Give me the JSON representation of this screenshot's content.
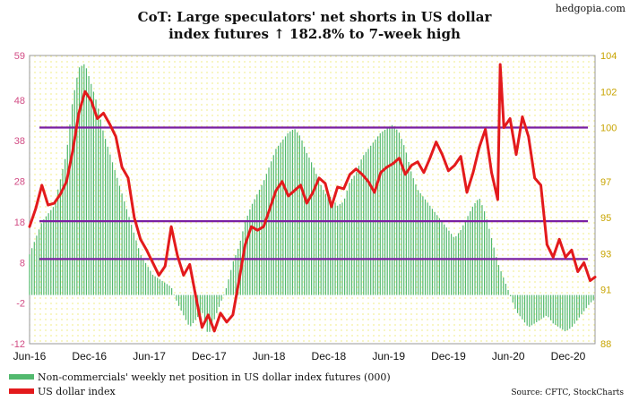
{
  "chart_data": {
    "type": "bar+line",
    "title_line1": "CoT: Large speculators' net shorts in US dollar",
    "title_line2": "index futures ↑ 182.8% to 7-week high",
    "watermark": "hedgopia.com",
    "source": "Source: CFTC, StockCharts",
    "x_tick_labels": [
      "Jun-16",
      "Dec-16",
      "Jun-17",
      "Dec-17",
      "Jun-18",
      "Dec-18",
      "Jun-19",
      "Dec-19",
      "Jun-20",
      "Dec-20"
    ],
    "x_range": [
      2016.4,
      2020.99
    ],
    "y_left": {
      "ticks": [
        59,
        48,
        38,
        28,
        18,
        8,
        -2,
        -12
      ],
      "range": [
        -12,
        59
      ],
      "color": "#d24b84"
    },
    "y_right": {
      "ticks": [
        104,
        102,
        100,
        97,
        95,
        93,
        91,
        88
      ],
      "range": [
        88,
        104
      ],
      "color": "#c8a400"
    },
    "reference_lines_usd": [
      100,
      94.8,
      92.7
    ],
    "colors": {
      "bars": "#52b96e",
      "line": "#e31a1c",
      "ref_lines": "#7a1fa2",
      "background_dots": "#f3ef9a"
    },
    "legend": [
      {
        "label": "Non-commercials' weekly net position in US dollar index futures (000)",
        "color": "#52b96e"
      },
      {
        "label": "US dollar index",
        "color": "#e31a1c"
      }
    ],
    "net_position_series": {
      "name": "Non-commercials' weekly net position in US dollar index futures (000)",
      "x": [
        2016.4,
        2016.5,
        2016.6,
        2016.7,
        2016.75,
        2016.8,
        2016.85,
        2016.9,
        2016.95,
        2017.0,
        2017.1,
        2017.2,
        2017.3,
        2017.4,
        2017.45,
        2017.5,
        2017.55,
        2017.6,
        2017.65,
        2017.7,
        2017.75,
        2017.8,
        2017.85,
        2017.9,
        2017.95,
        2018.0,
        2018.05,
        2018.1,
        2018.15,
        2018.2,
        2018.25,
        2018.3,
        2018.35,
        2018.4,
        2018.45,
        2018.5,
        2018.55,
        2018.6,
        2018.65,
        2018.7,
        2018.75,
        2018.8,
        2018.85,
        2018.9,
        2018.95,
        2019.0,
        2019.05,
        2019.1,
        2019.15,
        2019.2,
        2019.25,
        2019.3,
        2019.35,
        2019.4,
        2019.45,
        2019.5,
        2019.55,
        2019.6,
        2019.65,
        2019.7,
        2019.75,
        2019.8,
        2019.85,
        2019.9,
        2019.95,
        2020.0,
        2020.05,
        2020.1,
        2020.15,
        2020.2,
        2020.25,
        2020.3,
        2020.35,
        2020.4,
        2020.45,
        2020.5,
        2020.55,
        2020.6,
        2020.65,
        2020.7,
        2020.75,
        2020.8,
        2020.85,
        2020.9,
        2020.95,
        2020.99
      ],
      "values": [
        10,
        18,
        22,
        35,
        48,
        56,
        57,
        52,
        47,
        40,
        30,
        20,
        10,
        5,
        4,
        3,
        2,
        -2,
        -5,
        -8,
        -6,
        -4,
        -10,
        -6,
        -2,
        2,
        8,
        12,
        18,
        22,
        25,
        28,
        32,
        36,
        38,
        40,
        41,
        39,
        35,
        32,
        28,
        25,
        24,
        22,
        23,
        28,
        30,
        34,
        36,
        38,
        40,
        41,
        42,
        40,
        36,
        30,
        26,
        24,
        22,
        20,
        18,
        16,
        14,
        16,
        19,
        22,
        24,
        20,
        14,
        8,
        4,
        0,
        -4,
        -6,
        -8,
        -7,
        -6,
        -5,
        -7,
        -8,
        -9,
        -8,
        -6,
        -4,
        -2,
        -1
      ]
    },
    "usd_index_series": {
      "name": "US dollar index",
      "x": [
        2016.4,
        2016.45,
        2016.5,
        2016.55,
        2016.6,
        2016.65,
        2016.7,
        2016.75,
        2016.8,
        2016.85,
        2016.9,
        2016.95,
        2017.0,
        2017.05,
        2017.1,
        2017.15,
        2017.2,
        2017.25,
        2017.3,
        2017.35,
        2017.4,
        2017.45,
        2017.5,
        2017.55,
        2017.6,
        2017.65,
        2017.7,
        2017.75,
        2017.8,
        2017.85,
        2017.9,
        2017.95,
        2018.0,
        2018.05,
        2018.1,
        2018.15,
        2018.2,
        2018.25,
        2018.3,
        2018.35,
        2018.4,
        2018.45,
        2018.5,
        2018.55,
        2018.6,
        2018.65,
        2018.7,
        2018.75,
        2018.8,
        2018.85,
        2018.9,
        2018.95,
        2019.0,
        2019.05,
        2019.1,
        2019.15,
        2019.2,
        2019.25,
        2019.3,
        2019.35,
        2019.4,
        2019.45,
        2019.5,
        2019.55,
        2019.6,
        2019.65,
        2019.7,
        2019.75,
        2019.8,
        2019.85,
        2019.9,
        2019.95,
        2020.0,
        2020.05,
        2020.1,
        2020.15,
        2020.2,
        2020.22,
        2020.25,
        2020.3,
        2020.35,
        2020.4,
        2020.45,
        2020.5,
        2020.55,
        2020.6,
        2020.65,
        2020.7,
        2020.75,
        2020.8,
        2020.85,
        2020.9,
        2020.95,
        2020.99
      ],
      "values": [
        94.5,
        95.5,
        96.8,
        95.7,
        95.8,
        96.3,
        97.0,
        98.7,
        100.8,
        102.0,
        101.5,
        100.5,
        100.8,
        100.2,
        99.5,
        97.8,
        97.2,
        95.0,
        93.8,
        93.2,
        92.5,
        91.8,
        92.3,
        94.5,
        92.9,
        91.8,
        92.4,
        90.6,
        88.9,
        89.6,
        88.7,
        89.7,
        89.2,
        89.6,
        91.5,
        93.5,
        94.5,
        94.3,
        94.5,
        95.5,
        96.5,
        97.0,
        96.2,
        96.5,
        96.8,
        95.8,
        96.4,
        97.2,
        96.9,
        95.6,
        96.7,
        96.6,
        97.4,
        97.7,
        97.4,
        97.0,
        96.4,
        97.5,
        97.8,
        98.0,
        98.3,
        97.4,
        97.9,
        98.1,
        97.5,
        98.3,
        99.2,
        98.5,
        97.6,
        97.9,
        98.4,
        96.4,
        97.5,
        98.9,
        99.9,
        97.5,
        96.0,
        103.5,
        100.0,
        100.5,
        98.5,
        100.6,
        99.5,
        97.2,
        96.8,
        93.5,
        92.8,
        93.8,
        92.8,
        93.2,
        92.0,
        92.5,
        91.5,
        91.7
      ]
    }
  }
}
